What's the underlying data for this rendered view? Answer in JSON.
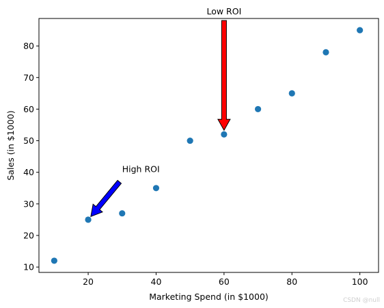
{
  "chart_data": {
    "type": "scatter",
    "x": [
      10,
      20,
      30,
      40,
      50,
      60,
      70,
      80,
      90,
      100
    ],
    "y": [
      12,
      25,
      27,
      35,
      50,
      52,
      60,
      65,
      78,
      85
    ],
    "title": "",
    "xlabel": "Marketing Spend (in $1000)",
    "ylabel": "Sales (in $1000)",
    "xlim": [
      5.5,
      105.5
    ],
    "ylim": [
      8.3,
      88.7
    ],
    "xticks": [
      20,
      40,
      60,
      80,
      100
    ],
    "yticks": [
      10,
      20,
      30,
      40,
      50,
      60,
      70,
      80
    ],
    "grid": false,
    "marker_color": "#1f77b4",
    "annotations": [
      {
        "text": "High ROI",
        "point": [
          20,
          25
        ],
        "text_pos": [
          30,
          40
        ],
        "arrow_color": "#0000ff"
      },
      {
        "text": "Low ROI",
        "point": [
          60,
          52
        ],
        "text_pos": [
          60,
          90
        ],
        "arrow_color": "#ff0000"
      }
    ]
  },
  "watermark": "CSDN @null"
}
